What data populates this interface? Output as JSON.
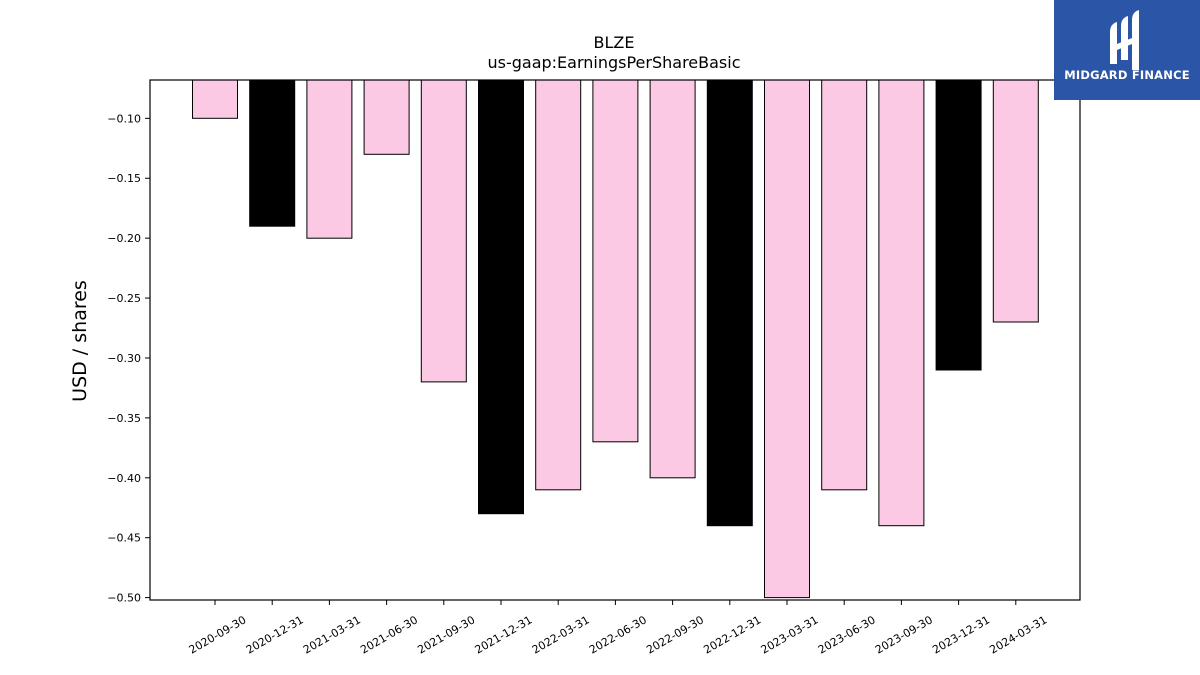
{
  "chart_data": {
    "type": "bar",
    "title": "BLZE",
    "subtitle": "us-gaap:EarningsPerShareBasic",
    "ylabel": "USD / shares",
    "xlabel": "",
    "categories": [
      "2020-09-30",
      "2020-12-31",
      "2021-03-31",
      "2021-06-30",
      "2021-09-30",
      "2021-12-31",
      "2022-03-31",
      "2022-06-30",
      "2022-09-30",
      "2022-12-31",
      "2023-03-31",
      "2023-06-30",
      "2023-09-30",
      "2023-12-31",
      "2024-03-31"
    ],
    "values": [
      -0.1,
      -0.19,
      -0.2,
      -0.13,
      -0.32,
      -0.43,
      -0.41,
      -0.37,
      -0.4,
      -0.44,
      -0.5,
      -0.41,
      -0.44,
      -0.31,
      -0.27
    ],
    "bar_colors": [
      "#fcc9e4",
      "#000000",
      "#fcc9e4",
      "#fcc9e4",
      "#fcc9e4",
      "#000000",
      "#fcc9e4",
      "#fcc9e4",
      "#fcc9e4",
      "#000000",
      "#fcc9e4",
      "#fcc9e4",
      "#fcc9e4",
      "#000000",
      "#fcc9e4"
    ],
    "ylim": [
      -0.502,
      -0.068
    ],
    "yticks": [
      -0.1,
      -0.15,
      -0.2,
      -0.25,
      -0.3,
      -0.35,
      -0.4,
      -0.45,
      -0.5
    ],
    "ytick_labels": [
      "−0.10",
      "−0.15",
      "−0.20",
      "−0.25",
      "−0.30",
      "−0.35",
      "−0.40",
      "−0.45",
      "−0.50"
    ],
    "grid": false,
    "legend": "none"
  },
  "watermark": {
    "text": "MIDGARD FINANCE",
    "background": "#2b55a6",
    "color": "#ffffff"
  }
}
